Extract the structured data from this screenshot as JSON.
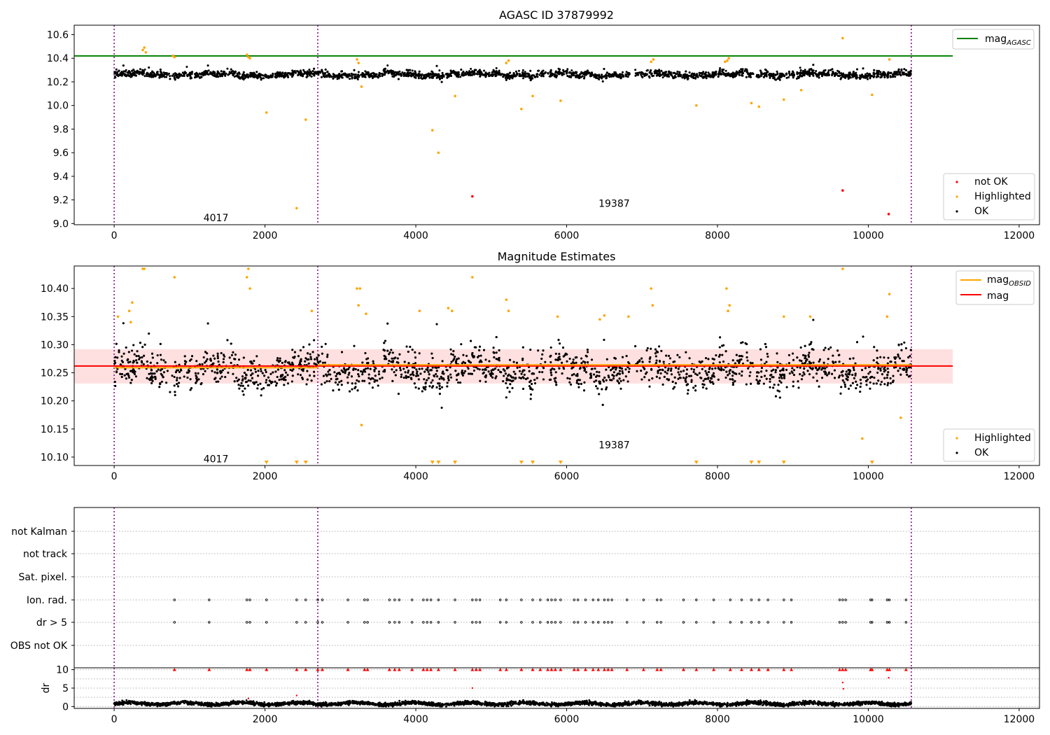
{
  "figure": {
    "title": "AGASC ID 37879992"
  },
  "colors": {
    "ok": "#000000",
    "highlighted": "#ffa500",
    "not_ok": "#ff0000",
    "agasc_line": "#008000",
    "obsid_line": "#ffa500",
    "mag_line": "#ff0000",
    "band": "#ffcccc",
    "obsid_divider": "#800080",
    "grid": "#b0b0b0"
  },
  "chart_data": [
    {
      "type": "scatter",
      "title": "AGASC ID 37879992",
      "xlim": [
        -530,
        12270
      ],
      "ylim": [
        8.99,
        10.68
      ],
      "xticks": [
        0,
        2000,
        4000,
        6000,
        8000,
        10000,
        12000
      ],
      "yticks": [
        9.0,
        9.2,
        9.4,
        9.6,
        9.8,
        10.0,
        10.2,
        10.4,
        10.6
      ],
      "hlines": [
        {
          "name": "mag_AGASC",
          "value": 10.42,
          "x": [
            -530,
            11120
          ]
        }
      ],
      "obsid_boundaries": [
        0,
        2700,
        10570
      ],
      "obsid_labels": [
        {
          "text": "4017",
          "x": 1350,
          "y": 9.05
        },
        {
          "text": "19387",
          "x": 6630,
          "y": 9.17
        }
      ],
      "legend": {
        "placement": "top-right",
        "entries": [
          "mag_AGASC"
        ]
      },
      "legend2": {
        "placement": "lower-right",
        "entries": [
          "not OK",
          "Highlighted",
          "OK"
        ]
      },
      "series": [
        {
          "name": "OK",
          "trend": "main band ~10.26 with scatter ±0.04"
        },
        {
          "name": "Highlighted",
          "x": [
            380,
            400,
            420,
            780,
            800,
            1760,
            1780,
            1800,
            2020,
            2420,
            2540,
            3220,
            3240,
            3280,
            4220,
            4300,
            4520,
            5200,
            5230,
            5400,
            5550,
            5920,
            7120,
            7150,
            7720,
            8100,
            8130,
            8150,
            8450,
            8550,
            8880,
            9110,
            9660,
            10050,
            10280
          ],
          "y": [
            10.47,
            10.49,
            10.45,
            10.42,
            10.41,
            10.43,
            10.41,
            10.4,
            9.94,
            9.13,
            9.88,
            10.39,
            10.36,
            10.16,
            9.79,
            9.6,
            10.08,
            10.36,
            10.38,
            9.97,
            10.08,
            10.04,
            10.37,
            10.39,
            10.0,
            10.37,
            10.38,
            10.4,
            10.02,
            9.99,
            10.05,
            10.13,
            10.57,
            10.09,
            10.39
          ]
        },
        {
          "name": "not OK",
          "x": [
            4750,
            9660,
            10270
          ],
          "y": [
            9.23,
            9.28,
            9.08
          ]
        }
      ]
    },
    {
      "type": "scatter",
      "title": "Magnitude Estimates",
      "xlim": [
        -530,
        12270
      ],
      "ylim": [
        10.085,
        10.44
      ],
      "xticks": [
        0,
        2000,
        4000,
        6000,
        8000,
        10000,
        12000
      ],
      "yticks": [
        10.1,
        10.15,
        10.2,
        10.25,
        10.3,
        10.35,
        10.4
      ],
      "band": {
        "low": 10.231,
        "high": 10.292,
        "x": [
          -530,
          11120
        ]
      },
      "hlines": [
        {
          "name": "mag",
          "value": 10.262,
          "x": [
            -530,
            11120
          ]
        },
        {
          "name": "mag_OBSID",
          "segments": [
            {
              "x": [
                0,
                2700
              ],
              "value": 10.259
            },
            {
              "x": [
                2700,
                10570
              ],
              "value": 10.264
            }
          ]
        }
      ],
      "obsid_boundaries": [
        0,
        2700,
        10570
      ],
      "obsid_labels": [
        {
          "text": "4017",
          "x": 1350,
          "y": 10.097
        },
        {
          "text": "19387",
          "x": 6630,
          "y": 10.122
        }
      ],
      "legend": {
        "placement": "top-right",
        "entries": [
          "mag_OBSID",
          "mag"
        ]
      },
      "legend2": {
        "placement": "lower-right",
        "entries": [
          "Highlighted",
          "OK"
        ]
      },
      "clipped_markers_x": [
        2020,
        2420,
        2540,
        4220,
        4300,
        4520,
        5400,
        5550,
        5920,
        7720,
        8450,
        8550,
        8880,
        10050
      ],
      "series": [
        {
          "name": "OK",
          "trend": "main band ~10.26 with scatter ±0.04, flares up to 10.34"
        },
        {
          "name": "Highlighted",
          "x": [
            50,
            200,
            220,
            240,
            380,
            400,
            800,
            1760,
            1780,
            1800,
            2620,
            3220,
            3240,
            3260,
            3280,
            3340,
            4050,
            4430,
            4480,
            4750,
            5200,
            5230,
            5880,
            6440,
            6500,
            6820,
            7120,
            7140,
            8120,
            8140,
            8160,
            8880,
            9230,
            9660,
            9920,
            10250,
            10280,
            10430
          ],
          "y": [
            10.35,
            10.36,
            10.34,
            10.375,
            10.435,
            10.435,
            10.42,
            10.42,
            10.435,
            10.4,
            10.36,
            10.4,
            10.37,
            10.4,
            10.157,
            10.355,
            10.36,
            10.365,
            10.36,
            10.42,
            10.38,
            10.36,
            10.35,
            10.345,
            10.352,
            10.35,
            10.4,
            10.37,
            10.4,
            10.36,
            10.37,
            10.35,
            10.35,
            10.435,
            10.133,
            10.35,
            10.39,
            10.17
          ]
        }
      ]
    },
    {
      "type": "scatter",
      "ylabel": "",
      "xlim": [
        -530,
        12270
      ],
      "categories": [
        "not Kalman",
        "not track",
        "Sat. pixel.",
        "Ion. rad.",
        "dr > 5",
        "OBS not OK"
      ],
      "flag_x": [
        800,
        1260,
        1760,
        1800,
        2020,
        2420,
        2540,
        2700,
        2760,
        3100,
        3320,
        3360,
        3650,
        3720,
        3780,
        3950,
        4100,
        4150,
        4200,
        4300,
        4520,
        4750,
        4800,
        4850,
        5120,
        5200,
        5400,
        5550,
        5650,
        5750,
        5800,
        5850,
        5920,
        6100,
        6150,
        6250,
        6350,
        6420,
        6500,
        6550,
        6600,
        6800,
        7020,
        7200,
        7250,
        7550,
        7720,
        7950,
        8170,
        8320,
        8450,
        8550,
        8670,
        8880,
        8980,
        9620,
        9660,
        9700,
        10030,
        10050,
        10250,
        10280,
        10500
      ],
      "flag_rows": [
        "Ion. rad.",
        "dr > 5"
      ],
      "obsid_boundaries": [
        0,
        2700,
        10570
      ]
    },
    {
      "type": "scatter",
      "ylabel": "dr",
      "xlim": [
        -530,
        12270
      ],
      "ylim": [
        -0.5,
        10.5
      ],
      "yticks": [
        0,
        5,
        10
      ],
      "obsid_boundaries": [
        0,
        2700,
        10570
      ],
      "capped_markers_note": "dr values above 10 are drawn as red triangles at 10 at the flag_x positions",
      "series": [
        {
          "name": "dr",
          "trend": "dense baseline ~0.5–1.5"
        },
        {
          "name": "dr outliers",
          "x": [
            4750,
            9660,
            9670,
            10270,
            2420,
            1780
          ],
          "y": [
            5.0,
            6.5,
            4.8,
            7.8,
            3.0,
            2.2
          ]
        }
      ]
    }
  ]
}
